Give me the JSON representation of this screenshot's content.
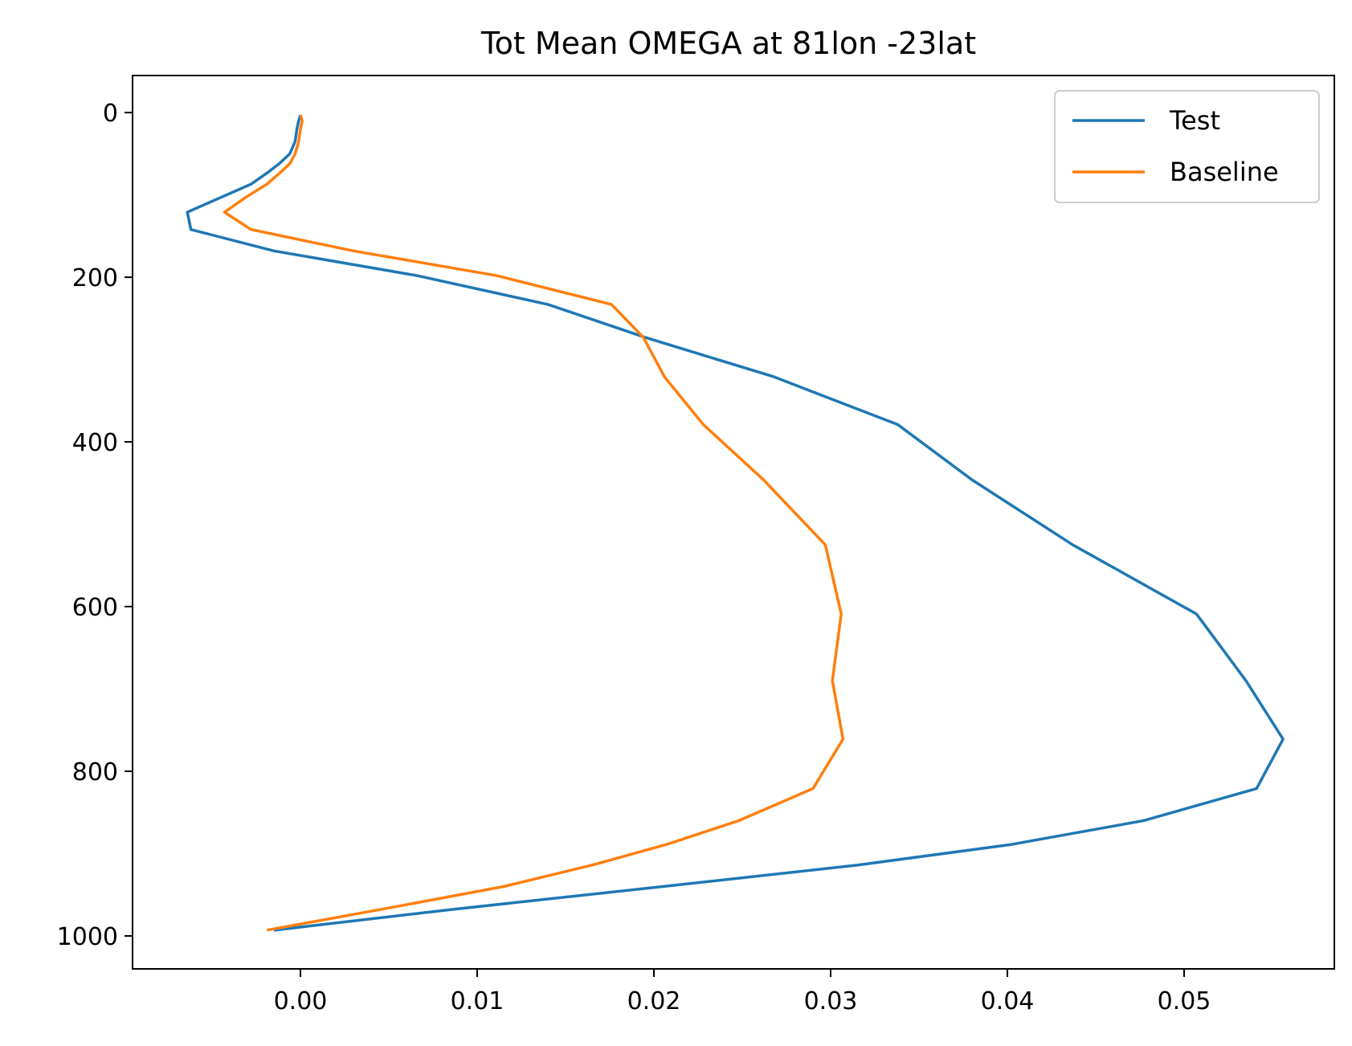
{
  "chart_data": {
    "type": "line",
    "title": "Tot Mean OMEGA at 81lon -23lat",
    "xlabel": "",
    "ylabel": "",
    "xlim": [
      -0.0095,
      0.0585
    ],
    "ylim": [
      1040,
      -45
    ],
    "y_inverted": true,
    "grid": false,
    "legend_position": "top-right",
    "x_ticks": [
      0.0,
      0.01,
      0.02,
      0.03,
      0.04,
      0.05
    ],
    "x_tick_labels": [
      "0.00",
      "0.01",
      "0.02",
      "0.03",
      "0.04",
      "0.05"
    ],
    "y_ticks": [
      0,
      200,
      400,
      600,
      800,
      1000
    ],
    "y_tick_labels": [
      "0",
      "200",
      "400",
      "600",
      "800",
      "1000"
    ],
    "series": [
      {
        "name": "Test",
        "color": "#1f77b4",
        "points": [
          [
            0.0,
            3
          ],
          [
            -0.0001,
            10
          ],
          [
            -0.0002,
            20
          ],
          [
            -0.0003,
            35
          ],
          [
            -0.0006,
            50
          ],
          [
            -0.0012,
            62
          ],
          [
            -0.0018,
            72
          ],
          [
            -0.0028,
            87
          ],
          [
            -0.0045,
            103
          ],
          [
            -0.0064,
            121
          ],
          [
            -0.0062,
            142
          ],
          [
            -0.0015,
            168
          ],
          [
            0.0066,
            198
          ],
          [
            0.014,
            233
          ],
          [
            0.0195,
            273
          ],
          [
            0.0268,
            321
          ],
          [
            0.0338,
            379
          ],
          [
            0.038,
            446
          ],
          [
            0.0437,
            525
          ],
          [
            0.0507,
            609
          ],
          [
            0.0535,
            690
          ],
          [
            0.0556,
            761
          ],
          [
            0.0541,
            821
          ],
          [
            0.0477,
            860
          ],
          [
            0.0402,
            889
          ],
          [
            0.0315,
            914
          ],
          [
            0.0205,
            940
          ],
          [
            0.0085,
            968
          ],
          [
            -0.0015,
            993
          ]
        ]
      },
      {
        "name": "Baseline",
        "color": "#ff7f0e",
        "points": [
          [
            0.0,
            3
          ],
          [
            0.0001,
            10
          ],
          [
            0.0,
            20
          ],
          [
            -0.0001,
            35
          ],
          [
            -0.0003,
            50
          ],
          [
            -0.0006,
            62
          ],
          [
            -0.0011,
            72
          ],
          [
            -0.0019,
            87
          ],
          [
            -0.0031,
            103
          ],
          [
            -0.0043,
            121
          ],
          [
            -0.0028,
            142
          ],
          [
            0.003,
            168
          ],
          [
            0.0111,
            198
          ],
          [
            0.0176,
            233
          ],
          [
            0.0194,
            273
          ],
          [
            0.0206,
            321
          ],
          [
            0.0228,
            379
          ],
          [
            0.0262,
            446
          ],
          [
            0.0297,
            525
          ],
          [
            0.0306,
            609
          ],
          [
            0.0301,
            690
          ],
          [
            0.0307,
            761
          ],
          [
            0.029,
            821
          ],
          [
            0.0248,
            860
          ],
          [
            0.0207,
            889
          ],
          [
            0.0165,
            914
          ],
          [
            0.0115,
            940
          ],
          [
            0.0045,
            968
          ],
          [
            -0.0019,
            993
          ]
        ]
      }
    ]
  }
}
